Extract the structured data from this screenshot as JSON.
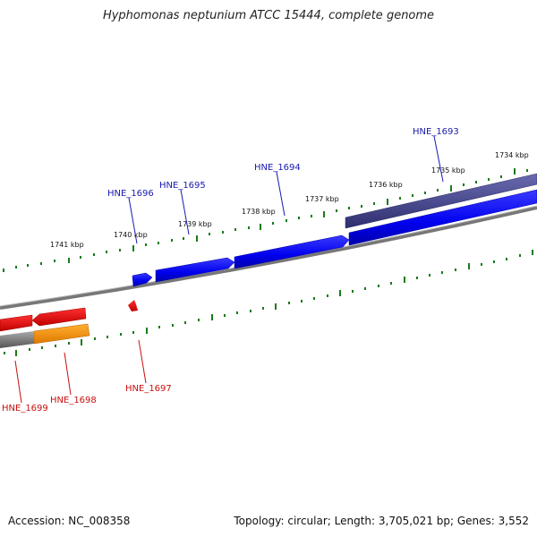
{
  "title": "Hyphomonas neptunium ATCC 15444, complete genome",
  "footer": {
    "accession": "Accession: NC_008358",
    "stats": "Topology: circular; Length: 3,705,021 bp; Genes: 3,552"
  },
  "scale_labels": [
    "1734 kbp",
    "1735 kbp",
    "1736 kbp",
    "1737 kbp",
    "1738 kbp",
    "1739 kbp",
    "1740 kbp",
    "1741 kbp"
  ],
  "genes_forward": [
    "HNE_1693",
    "HNE_1694",
    "HNE_1695",
    "HNE_1696"
  ],
  "genes_reverse": [
    "HNE_1697",
    "HNE_1698",
    "HNE_1699"
  ],
  "colors": {
    "forward_gene": "#0000ee",
    "forward_gene_dark": "#3c3c8c",
    "reverse_gene": "#ee0000",
    "orange_feature": "#ff9900",
    "backbone": "#888888",
    "tick": "#1a7a1a",
    "label_forward": "#1a1ab0",
    "label_reverse": "#c81010"
  }
}
